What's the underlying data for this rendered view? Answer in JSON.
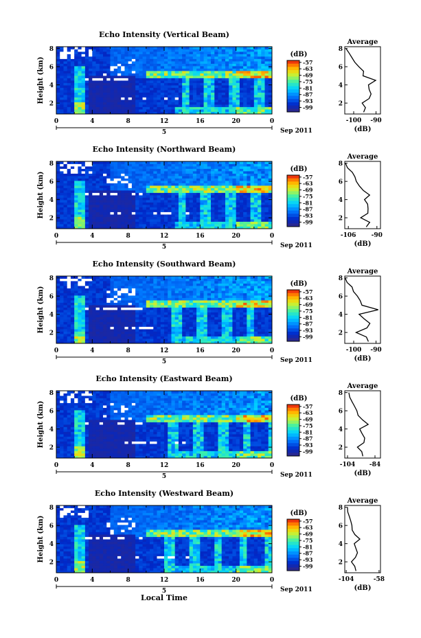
{
  "chart_data": [
    {
      "type": "heatmap",
      "title": "Echo Intensity (Vertical Beam)",
      "ylabel": "Height (km)",
      "xlabel": "",
      "date_label": "5",
      "date_suffix": "Sep 2011",
      "x_ticks": [
        "0",
        "4",
        "8",
        "12",
        "16",
        "20",
        "0"
      ],
      "y_ticks": [
        "2",
        "4",
        "6",
        "8"
      ],
      "xlim": [
        0,
        24
      ],
      "ylim": [
        0.8,
        8.2
      ],
      "colorbar": {
        "unit": "(dB)",
        "ticks": [
          "-57",
          "-63",
          "-69",
          "-75",
          "-81",
          "-87",
          "-93",
          "-99"
        ]
      },
      "profile": {
        "title": "Average",
        "xlabel": "(dB)",
        "x_ticks": [
          "-100",
          "-90"
        ],
        "y_ticks": [
          "2",
          "4",
          "6",
          "8"
        ],
        "xlim": [
          -104,
          -88
        ],
        "heights": [
          1.0,
          1.5,
          2.0,
          2.5,
          3.0,
          3.5,
          4.0,
          4.5,
          5.0,
          5.5,
          6.0,
          6.5,
          7.0,
          7.5,
          8.0
        ],
        "values": [
          -95,
          -94,
          -97,
          -93,
          -92,
          -93,
          -94,
          -91,
          -95,
          -96,
          -97,
          -99,
          -101,
          -102,
          -103
        ]
      }
    },
    {
      "type": "heatmap",
      "title": "Echo Intensity (Northward Beam)",
      "ylabel": "Height (km)",
      "xlabel": "",
      "date_label": "5",
      "date_suffix": "Sep 2011",
      "x_ticks": [
        "0",
        "4",
        "8",
        "12",
        "16",
        "20",
        "0"
      ],
      "y_ticks": [
        "2",
        "4",
        "6",
        "8"
      ],
      "xlim": [
        0,
        24
      ],
      "ylim": [
        0.8,
        8.2
      ],
      "colorbar": {
        "unit": "(dB)",
        "ticks": [
          "-57",
          "-63",
          "-69",
          "-75",
          "-81",
          "-87",
          "-93",
          "-99"
        ]
      },
      "profile": {
        "title": "Average",
        "xlabel": "(dB)",
        "x_ticks": [
          "-106",
          "-90"
        ],
        "y_ticks": [
          "2",
          "4",
          "6",
          "8"
        ],
        "xlim": [
          -108,
          -88
        ],
        "heights": [
          1.0,
          1.5,
          2.0,
          2.5,
          3.0,
          3.5,
          4.0,
          4.5,
          5.0,
          5.5,
          6.0,
          6.5,
          7.0,
          7.5,
          8.0
        ],
        "values": [
          -96,
          -95,
          -99,
          -96,
          -94,
          -96,
          -97,
          -95,
          -98,
          -100,
          -101,
          -102,
          -104,
          -106,
          -107
        ]
      }
    },
    {
      "type": "heatmap",
      "title": "Echo Intensity (Southward Beam)",
      "ylabel": "Height (km)",
      "xlabel": "",
      "date_label": "5",
      "date_suffix": "Sep 2011",
      "x_ticks": [
        "0",
        "4",
        "8",
        "12",
        "16",
        "20",
        "0"
      ],
      "y_ticks": [
        "2",
        "4",
        "6",
        "8"
      ],
      "xlim": [
        0,
        24
      ],
      "ylim": [
        0.8,
        8.2
      ],
      "colorbar": {
        "unit": "(dB)",
        "ticks": [
          "-57",
          "-63",
          "-69",
          "-75",
          "-81",
          "-87",
          "-93",
          "-99"
        ]
      },
      "profile": {
        "title": "Average",
        "xlabel": "(dB)",
        "x_ticks": [
          "-100",
          "-90"
        ],
        "y_ticks": [
          "2",
          "4",
          "6",
          "8"
        ],
        "xlim": [
          -104,
          -88
        ],
        "heights": [
          1.0,
          1.5,
          2.0,
          2.5,
          3.0,
          3.5,
          4.0,
          4.5,
          5.0,
          5.5,
          6.0,
          6.5,
          7.0,
          7.5,
          8.0
        ],
        "values": [
          -94,
          -95,
          -98,
          -94,
          -93,
          -95,
          -97,
          -90,
          -96,
          -97,
          -98,
          -100,
          -101,
          -102,
          -103
        ]
      }
    },
    {
      "type": "heatmap",
      "title": "Echo Intensity (Eastward Beam)",
      "ylabel": "Height (km)",
      "xlabel": "",
      "date_label": "5",
      "date_suffix": "Sep 2011",
      "x_ticks": [
        "0",
        "4",
        "8",
        "12",
        "16",
        "20",
        "0"
      ],
      "y_ticks": [
        "2",
        "4",
        "6",
        "8"
      ],
      "xlim": [
        0,
        24
      ],
      "ylim": [
        0.8,
        8.2
      ],
      "colorbar": {
        "unit": "(dB)",
        "ticks": [
          "-57",
          "-63",
          "-69",
          "-75",
          "-81",
          "-87",
          "-93",
          "-99"
        ]
      },
      "profile": {
        "title": "Average",
        "xlabel": "(dB)",
        "x_ticks": [
          "-104",
          "-84"
        ],
        "y_ticks": [
          "2",
          "4",
          "6",
          "8"
        ],
        "xlim": [
          -106,
          -80
        ],
        "heights": [
          1.0,
          1.5,
          2.0,
          2.5,
          3.0,
          3.5,
          4.0,
          4.5,
          5.0,
          5.5,
          6.0,
          6.5,
          7.0,
          7.5,
          8.0
        ],
        "values": [
          -92,
          -94,
          -97,
          -93,
          -91,
          -94,
          -96,
          -88,
          -94,
          -96,
          -97,
          -99,
          -101,
          -103,
          -104
        ]
      }
    },
    {
      "type": "heatmap",
      "title": "Echo Intensity (Westward Beam)",
      "ylabel": "Height (km)",
      "xlabel": "Local Time",
      "date_label": "5",
      "date_suffix": "Sep 2011",
      "x_ticks": [
        "0",
        "4",
        "8",
        "12",
        "16",
        "20",
        "0"
      ],
      "y_ticks": [
        "2",
        "4",
        "6",
        "8"
      ],
      "xlim": [
        0,
        24
      ],
      "ylim": [
        0.8,
        8.2
      ],
      "colorbar": {
        "unit": "(dB)",
        "ticks": [
          "-57",
          "-63",
          "-69",
          "-75",
          "-81",
          "-87",
          "-93",
          "-99"
        ]
      },
      "profile": {
        "title": "Average",
        "xlabel": "(dB)",
        "x_ticks": [
          "-104",
          "-58"
        ],
        "y_ticks": [
          "2",
          "4",
          "6",
          "8"
        ],
        "xlim": [
          -106,
          -56
        ],
        "heights": [
          1.0,
          1.5,
          2.0,
          2.5,
          3.0,
          3.5,
          4.0,
          4.5,
          5.0,
          5.5,
          6.0,
          6.5,
          7.0,
          7.5,
          8.0
        ],
        "values": [
          -90,
          -92,
          -96,
          -91,
          -89,
          -90,
          -93,
          -84,
          -92,
          -95,
          -96,
          -98,
          -100,
          -102,
          -103
        ]
      }
    }
  ]
}
